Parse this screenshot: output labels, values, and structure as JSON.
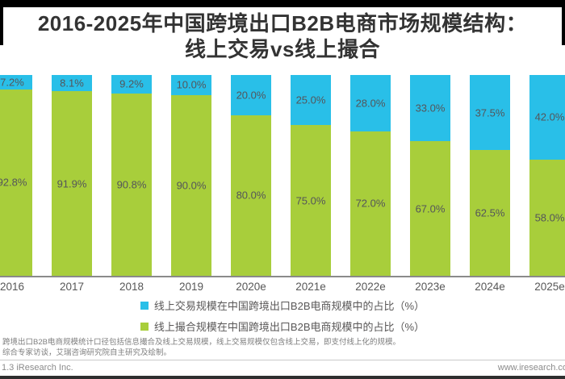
{
  "header": {
    "title_line1": "2016-2025年中国跨境出口B2B电商市场规模结构：",
    "title_line2": "线上交易vs线上撮合"
  },
  "chart_data": {
    "type": "bar",
    "stacked": true,
    "orientation": "vertical",
    "categories": [
      "2016",
      "2017",
      "2018",
      "2019",
      "2020e",
      "2021e",
      "2022e",
      "2023e",
      "2024e",
      "2025e"
    ],
    "series": [
      {
        "name": "线上交易规模在中国跨境出口B2B电商规模中的占比（%）",
        "color": "#29BFE8",
        "position": "top",
        "values": [
          7.2,
          8.1,
          9.2,
          10.0,
          20.0,
          25.0,
          28.0,
          33.0,
          37.5,
          42.0
        ]
      },
      {
        "name": "线上撮合规模在中国跨境出口B2B电商规模中的占比（%）",
        "color": "#A8CE3B",
        "position": "bottom",
        "values": [
          92.8,
          91.9,
          90.8,
          90.0,
          80.0,
          75.0,
          72.0,
          67.0,
          62.5,
          58.0
        ]
      }
    ],
    "value_suffix": "%",
    "value_decimals": 1,
    "ylim": [
      0,
      100
    ],
    "grid": false,
    "legend_position": "bottom",
    "label_color": "#54555a"
  },
  "footer": {
    "note_line1": "跨境出口B2B电商规模统计口径包括信息撮合及线上交易规模，线上交易规模仅包含线上交易，即支付线上化的规模。",
    "note_line2": "综合专家访谈，艾瑞咨询研究院自主研究及绘制。",
    "source_left": "1.3 iResearch Inc.",
    "source_right": "www.iresearch.co"
  }
}
